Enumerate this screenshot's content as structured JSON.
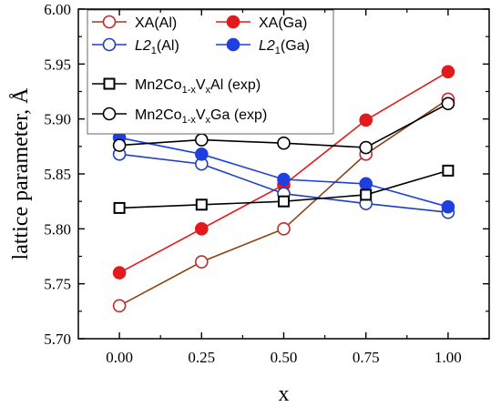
{
  "chart_data": {
    "type": "line",
    "xlabel": "x",
    "ylabel": "lattice parameter, Å",
    "x": [
      0.0,
      0.25,
      0.5,
      0.75,
      1.0
    ],
    "xticks": [
      "0.00",
      "0.25",
      "0.50",
      "0.75",
      "1.00"
    ],
    "xlim": [
      -0.125,
      1.125
    ],
    "ylim": [
      5.7,
      6.0
    ],
    "yticks": [
      "5.70",
      "5.75",
      "5.80",
      "5.85",
      "5.90",
      "5.95",
      "6.00"
    ],
    "grid": false,
    "legend_position": "top-left",
    "series": [
      {
        "key": "xa_al",
        "name": "XA(Al)",
        "legend": {
          "main": "XA(Al)"
        },
        "values": [
          5.73,
          5.77,
          5.8,
          5.868,
          5.918
        ],
        "color": "#c62828",
        "line_color": "#8b4513",
        "marker": "circle",
        "filled": false
      },
      {
        "key": "xa_ga",
        "name": "XA(Ga)",
        "legend": {
          "main": "XA(Ga)"
        },
        "values": [
          5.76,
          5.8,
          5.84,
          5.899,
          5.943
        ],
        "color": "#e31a1c",
        "line_color": "#e31a1c",
        "marker": "circle",
        "filled": true
      },
      {
        "key": "l21_al",
        "name": "L21(Al)",
        "legend": {
          "main": "L2",
          "sub": "1",
          "tail": "(Al)",
          "italic_main": true
        },
        "values": [
          5.868,
          5.859,
          5.832,
          5.823,
          5.815
        ],
        "color": "#1f3fbf",
        "line_color": "#1f3fbf",
        "marker": "circle",
        "filled": false
      },
      {
        "key": "l21_ga",
        "name": "L21(Ga)",
        "legend": {
          "main": "L2",
          "sub": "1",
          "tail": "(Ga)",
          "italic_main": true
        },
        "values": [
          5.883,
          5.868,
          5.845,
          5.841,
          5.82
        ],
        "color": "#1f3fdf",
        "line_color": "#1f3fdf",
        "marker": "circle",
        "filled": true
      },
      {
        "key": "exp_al",
        "name": "Mn2Co1-xVxAl (exp)",
        "legend": {
          "parts": [
            [
              "Mn2Co",
              false
            ],
            [
              "1-x",
              true
            ],
            [
              "V",
              false
            ],
            [
              "x",
              true
            ],
            [
              "Al (exp)",
              false
            ]
          ]
        },
        "values": [
          5.819,
          5.822,
          5.825,
          5.831,
          5.853
        ],
        "color": "#000000",
        "line_color": "#000000",
        "marker": "square",
        "filled": false
      },
      {
        "key": "exp_ga",
        "name": "Mn2Co1-xVxGa (exp)",
        "legend": {
          "parts": [
            [
              "Mn2Co",
              false
            ],
            [
              "1-x",
              true
            ],
            [
              "V",
              false
            ],
            [
              "x",
              true
            ],
            [
              "Ga (exp)",
              false
            ]
          ]
        },
        "values": [
          5.876,
          5.881,
          5.878,
          5.874,
          5.914
        ],
        "color": "#000000",
        "line_color": "#000000",
        "marker": "circle",
        "filled": false
      }
    ]
  }
}
